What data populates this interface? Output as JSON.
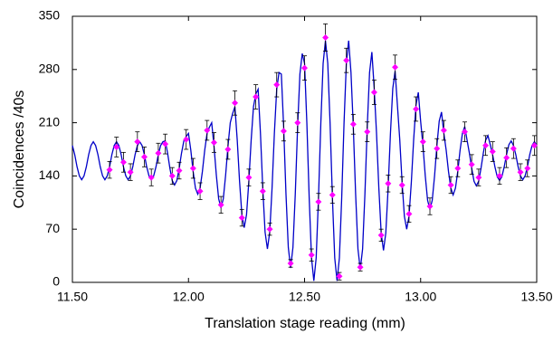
{
  "chart_data": {
    "type": "scatter",
    "xlabel": "Translation stage reading (mm)",
    "ylabel": "Coincidences /40s",
    "xlim": [
      11.5,
      13.5
    ],
    "xticks": [
      {
        "value": 11.5,
        "label": "11.50"
      },
      {
        "value": 12,
        "label": "12.00"
      },
      {
        "value": 12.5,
        "label": "12.50"
      },
      {
        "value": 13,
        "label": "13.00"
      },
      {
        "value": 13.5,
        "label": "13.50"
      }
    ],
    "ylim": [
      0,
      350
    ],
    "yticks": [
      0,
      70,
      140,
      210,
      280,
      350
    ],
    "series": [
      {
        "type": "line",
        "color": "#0000c8",
        "x": [
          11.5,
          11.51,
          11.52,
          11.53,
          11.54,
          11.55,
          11.56,
          11.57,
          11.58,
          11.59,
          11.6,
          11.61,
          11.62,
          11.63,
          11.64,
          11.65,
          11.66,
          11.67,
          11.68,
          11.69,
          11.7,
          11.71,
          11.72,
          11.73,
          11.74,
          11.75,
          11.76,
          11.77,
          11.78,
          11.79,
          11.8,
          11.81,
          11.82,
          11.83,
          11.84,
          11.85,
          11.86,
          11.87,
          11.88,
          11.89,
          11.9,
          11.91,
          11.92,
          11.93,
          11.94,
          11.95,
          11.96,
          11.97,
          11.98,
          11.99,
          12,
          12.01,
          12.02,
          12.03,
          12.04,
          12.05,
          12.06,
          12.07,
          12.08,
          12.09,
          12.1,
          12.11,
          12.12,
          12.13,
          12.14,
          12.15,
          12.16,
          12.17,
          12.18,
          12.19,
          12.2,
          12.21,
          12.22,
          12.23,
          12.24,
          12.25,
          12.26,
          12.27,
          12.28,
          12.29,
          12.3,
          12.31,
          12.32,
          12.33,
          12.34,
          12.35,
          12.36,
          12.37,
          12.38,
          12.39,
          12.4,
          12.41,
          12.42,
          12.43,
          12.44,
          12.45,
          12.46,
          12.47,
          12.48,
          12.49,
          12.5,
          12.51,
          12.52,
          12.53,
          12.54,
          12.55,
          12.56,
          12.57,
          12.58,
          12.59,
          12.6,
          12.61,
          12.62,
          12.63,
          12.64,
          12.65,
          12.66,
          12.67,
          12.68,
          12.69,
          12.7,
          12.71,
          12.72,
          12.73,
          12.74,
          12.75,
          12.76,
          12.77,
          12.78,
          12.79,
          12.8,
          12.81,
          12.82,
          12.83,
          12.84,
          12.85,
          12.86,
          12.87,
          12.88,
          12.89,
          12.9,
          12.91,
          12.92,
          12.93,
          12.94,
          12.95,
          12.96,
          12.97,
          12.98,
          12.99,
          13,
          13.01,
          13.02,
          13.03,
          13.04,
          13.05,
          13.06,
          13.07,
          13.08,
          13.09,
          13.1,
          13.11,
          13.12,
          13.13,
          13.14,
          13.15,
          13.16,
          13.17,
          13.18,
          13.19,
          13.2,
          13.21,
          13.22,
          13.23,
          13.24,
          13.25,
          13.26,
          13.27,
          13.28,
          13.29,
          13.3,
          13.31,
          13.32,
          13.33,
          13.34,
          13.35,
          13.36,
          13.37,
          13.38,
          13.39,
          13.4,
          13.41,
          13.42,
          13.43,
          13.44,
          13.45,
          13.46,
          13.47,
          13.48,
          13.49,
          13.5
        ],
        "values": [
          180,
          168,
          152,
          140,
          135,
          140,
          152,
          168,
          180,
          185,
          180,
          168,
          152,
          140,
          135,
          140,
          152,
          168,
          180,
          185,
          180,
          168,
          152,
          140,
          135,
          140,
          152,
          168,
          180,
          185,
          180,
          168,
          152,
          140,
          135,
          140,
          152,
          168,
          180,
          185,
          186,
          170,
          150,
          134,
          128,
          134,
          150,
          170,
          186,
          192,
          196,
          174,
          146,
          124,
          116,
          124,
          146,
          174,
          196,
          204,
          210,
          179,
          141,
          110,
          98,
          110,
          141,
          179,
          210,
          222,
          231,
          187,
          133,
          89,
          72,
          89,
          133,
          187,
          231,
          248,
          254,
          196,
          124,
          66,
          44,
          66,
          124,
          196,
          254,
          276,
          274,
          204,
          116,
          46,
          19,
          46,
          116,
          204,
          274,
          301,
          288,
          209,
          111,
          32,
          2,
          32,
          111,
          209,
          288,
          318,
          288,
          209,
          111,
          32,
          2,
          32,
          111,
          209,
          288,
          318,
          276,
          204,
          116,
          44,
          17,
          44,
          116,
          204,
          276,
          303,
          255,
          196,
          124,
          65,
          42,
          65,
          124,
          196,
          255,
          278,
          233,
          188,
          132,
          87,
          70,
          87,
          132,
          188,
          233,
          250,
          212,
          180,
          140,
          108,
          96,
          108,
          140,
          180,
          212,
          224,
          196,
          174,
          146,
          124,
          115,
          124,
          146,
          174,
          196,
          205,
          187,
          170,
          150,
          133,
          127,
          133,
          150,
          170,
          187,
          193,
          181,
          168,
          152,
          139,
          134,
          139,
          152,
          168,
          181,
          186,
          180,
          168,
          152,
          140,
          135,
          140,
          152,
          168,
          180,
          185,
          180
        ]
      },
      {
        "type": "scatter",
        "color": "#ff00ff",
        "x": [
          11.66,
          11.69,
          11.72,
          11.75,
          11.78,
          11.81,
          11.84,
          11.87,
          11.9,
          11.93,
          11.96,
          11.99,
          12.02,
          12.05,
          12.08,
          12.11,
          12.14,
          12.17,
          12.2,
          12.23,
          12.26,
          12.29,
          12.32,
          12.35,
          12.38,
          12.41,
          12.44,
          12.47,
          12.5,
          12.53,
          12.56,
          12.59,
          12.62,
          12.65,
          12.68,
          12.71,
          12.74,
          12.77,
          12.8,
          12.83,
          12.86,
          12.89,
          12.92,
          12.95,
          12.98,
          13.01,
          13.04,
          13.07,
          13.1,
          13.13,
          13.16,
          13.19,
          13.22,
          13.25,
          13.28,
          13.31,
          13.34,
          13.37,
          13.4,
          13.43,
          13.46,
          13.49
        ],
        "values": [
          148,
          178,
          158,
          145,
          185,
          165,
          138,
          170,
          182,
          140,
          147,
          188,
          150,
          120,
          200,
          184,
          102,
          175,
          236,
          85,
          138,
          244,
          120,
          70,
          260,
          199,
          25,
          210,
          282,
          36,
          106,
          322,
          115,
          8,
          292,
          208,
          20,
          198,
          250,
          62,
          130,
          283,
          128,
          90,
          228,
          185,
          100,
          176,
          200,
          128,
          150,
          198,
          155,
          138,
          180,
          172,
          140,
          164,
          176,
          145,
          150,
          180
        ],
        "errors": [
          11,
          13,
          13,
          11,
          13,
          13,
          11,
          13,
          13,
          11,
          11,
          13,
          13,
          11,
          13,
          13,
          11,
          13,
          16,
          11,
          11,
          16,
          11,
          8,
          16,
          13,
          5,
          13,
          16,
          8,
          11,
          18,
          11,
          5,
          16,
          13,
          5,
          13,
          16,
          8,
          11,
          16,
          11,
          11,
          16,
          13,
          11,
          13,
          13,
          11,
          11,
          13,
          13,
          11,
          13,
          13,
          11,
          13,
          13,
          11,
          11,
          13
        ]
      }
    ]
  }
}
